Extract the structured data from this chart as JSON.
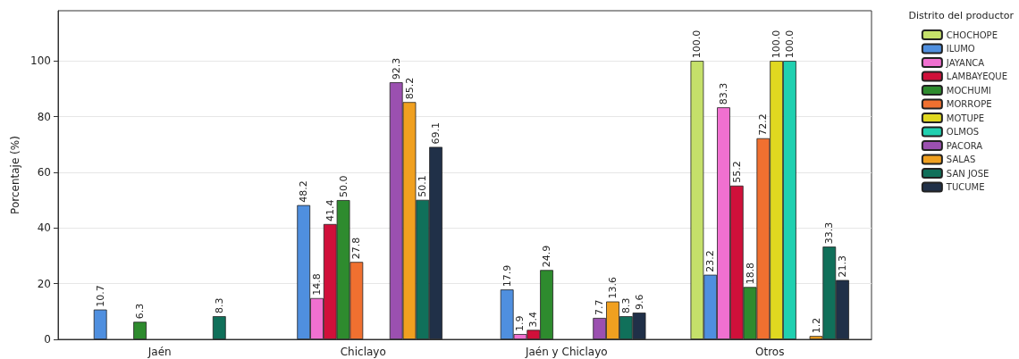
{
  "chart_data": {
    "type": "bar",
    "ylabel": "Porcentaje (%)",
    "legend_title": "Distrito del productor",
    "categories": [
      "Jaén",
      "Chiclayo",
      "Jaén y Chiclayo",
      "Otros"
    ],
    "series": [
      {
        "name": "CHOCHOPE",
        "color": "#c5e06a",
        "values": [
          null,
          null,
          null,
          100.0
        ],
        "value_labels": [
          null,
          null,
          null,
          "100.0"
        ]
      },
      {
        "name": "ILUMO",
        "color": "#4f8fdf",
        "values": [
          10.7,
          48.2,
          17.9,
          23.2
        ],
        "value_labels": [
          "10.7",
          "48.2",
          "17.9",
          "23.2"
        ]
      },
      {
        "name": "JAYANCA",
        "color": "#f070d0",
        "values": [
          null,
          14.8,
          1.9,
          83.3
        ],
        "value_labels": [
          null,
          "14.8",
          "1.9",
          "83.3"
        ]
      },
      {
        "name": "LAMBAYEQUE",
        "color": "#d0103a",
        "values": [
          null,
          41.4,
          3.4,
          55.2
        ],
        "value_labels": [
          null,
          "41.4",
          "3.4",
          "55.2"
        ]
      },
      {
        "name": "MOCHUMI",
        "color": "#2e8b2e",
        "values": [
          6.3,
          50.0,
          24.9,
          18.8
        ],
        "value_labels": [
          "6.3",
          "50.0",
          "24.9",
          "18.8"
        ]
      },
      {
        "name": "MORROPE",
        "color": "#f07030",
        "values": [
          null,
          27.8,
          null,
          72.2
        ],
        "value_labels": [
          null,
          "27.8",
          null,
          "72.2"
        ]
      },
      {
        "name": "MOTUPE",
        "color": "#e0d820",
        "values": [
          null,
          null,
          null,
          100.0
        ],
        "value_labels": [
          null,
          null,
          null,
          "100.0"
        ]
      },
      {
        "name": "OLMOS",
        "color": "#20d0b0",
        "values": [
          null,
          null,
          null,
          100.0
        ],
        "value_labels": [
          null,
          null,
          null,
          "100.0"
        ]
      },
      {
        "name": "PACORA",
        "color": "#9b50b0",
        "values": [
          null,
          92.3,
          7.7,
          null
        ],
        "value_labels": [
          null,
          "92.3",
          "7.7",
          null
        ]
      },
      {
        "name": "SALAS",
        "color": "#f0a020",
        "values": [
          null,
          85.2,
          13.6,
          1.2
        ],
        "value_labels": [
          null,
          "85.2",
          "13.6",
          "1.2"
        ]
      },
      {
        "name": "SAN JOSE",
        "color": "#10705a",
        "values": [
          8.3,
          50.1,
          8.3,
          33.3
        ],
        "value_labels": [
          "8.3",
          "50.1",
          "8.3",
          "33.3"
        ]
      },
      {
        "name": "TUCUME",
        "color": "#203048",
        "values": [
          null,
          69.1,
          9.6,
          21.3
        ],
        "value_labels": [
          null,
          "69.1",
          "9.6",
          "21.3"
        ]
      }
    ],
    "ylim": [
      0,
      118
    ],
    "yticks": [
      0,
      20,
      40,
      60,
      80,
      100
    ],
    "grid": "y",
    "legend": "top right"
  }
}
